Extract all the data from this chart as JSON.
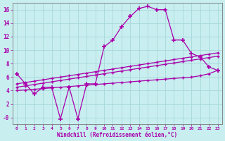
{
  "xlabel": "Windchill (Refroidissement éolien,°C)",
  "x": [
    0,
    1,
    2,
    3,
    4,
    5,
    6,
    7,
    8,
    9,
    10,
    11,
    12,
    13,
    14,
    15,
    16,
    17,
    18,
    19,
    20,
    21,
    22,
    23
  ],
  "y_main": [
    6.5,
    5.0,
    3.5,
    4.5,
    4.5,
    -0.2,
    4.5,
    -0.2,
    5.0,
    5.0,
    10.5,
    11.5,
    13.5,
    15.0,
    16.2,
    16.5,
    16.0,
    16.0,
    11.5,
    11.5,
    9.5,
    9.0,
    7.5,
    7.0
  ],
  "y_lin1": [
    5.0,
    5.2,
    5.4,
    5.6,
    5.8,
    6.0,
    6.2,
    6.4,
    6.6,
    6.8,
    7.0,
    7.2,
    7.4,
    7.6,
    7.8,
    8.0,
    8.2,
    8.4,
    8.6,
    8.8,
    9.0,
    9.2,
    9.4,
    9.6
  ],
  "y_lin2": [
    4.5,
    4.7,
    4.9,
    5.1,
    5.3,
    5.5,
    5.7,
    5.9,
    6.1,
    6.3,
    6.5,
    6.7,
    6.9,
    7.1,
    7.3,
    7.5,
    7.7,
    7.9,
    8.1,
    8.3,
    8.5,
    8.7,
    8.9,
    9.1
  ],
  "y_lin3": [
    4.0,
    4.1,
    4.2,
    4.3,
    4.4,
    4.5,
    4.6,
    4.7,
    4.8,
    4.9,
    5.0,
    5.1,
    5.2,
    5.3,
    5.4,
    5.5,
    5.6,
    5.7,
    5.8,
    5.9,
    6.0,
    6.2,
    6.5,
    7.0
  ],
  "background_color": "#c8eef0",
  "grid_color": "#a8d8da",
  "line_color": "#aa00aa",
  "ylim": [
    -1.0,
    17.0
  ],
  "xlim": [
    0,
    23
  ],
  "yticks": [
    0,
    2,
    4,
    6,
    8,
    10,
    12,
    14,
    16
  ],
  "xticks": [
    0,
    1,
    2,
    3,
    4,
    5,
    6,
    7,
    8,
    9,
    10,
    11,
    12,
    13,
    14,
    15,
    16,
    17,
    18,
    19,
    20,
    21,
    22,
    23
  ]
}
